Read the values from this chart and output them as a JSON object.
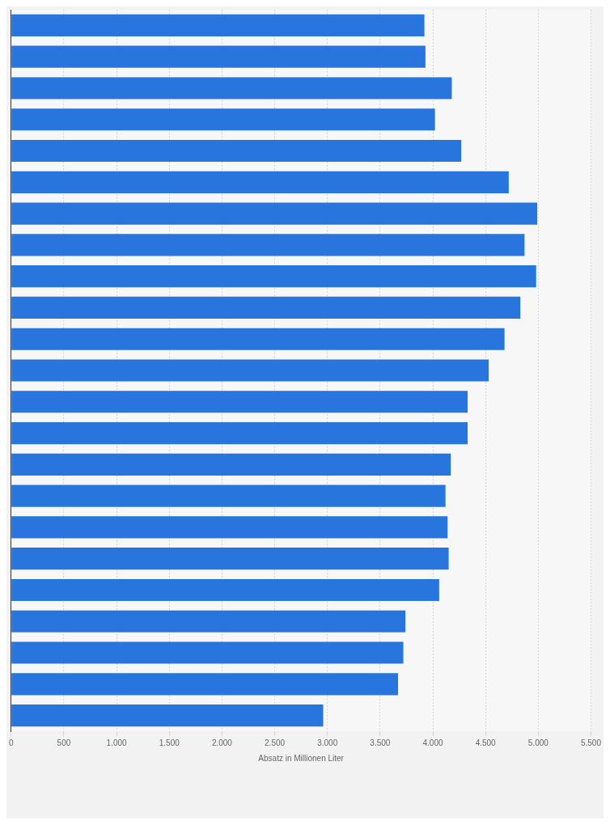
{
  "chart_data": {
    "type": "bar",
    "orientation": "horizontal",
    "xlabel": "Absatz in Millionen Liter",
    "categories": [
      null,
      null,
      null,
      null,
      null,
      null,
      null,
      null,
      null,
      null,
      null,
      null,
      null,
      null,
      null,
      null,
      null,
      null,
      null,
      null,
      null,
      null,
      null
    ],
    "values": [
      3920,
      3930,
      4180,
      4020,
      4270,
      4720,
      4990,
      4870,
      4980,
      4830,
      4680,
      4530,
      4330,
      4330,
      4170,
      4120,
      4140,
      4150,
      4060,
      3740,
      3720,
      3670,
      2960
    ],
    "color": "#2876dd",
    "xlim": [
      0,
      5500
    ],
    "xticks": [
      0,
      500,
      {
        "value": 1000,
        "label": "1.000"
      },
      {
        "value": 1500,
        "label": "1.500"
      },
      {
        "value": 2000,
        "label": "2.000"
      },
      {
        "value": 2500,
        "label": "2.500"
      },
      {
        "value": 3000,
        "label": "3.000"
      },
      {
        "value": 3500,
        "label": "3.500"
      },
      {
        "value": 4000,
        "label": "4.000"
      },
      {
        "value": 4500,
        "label": "4.500"
      },
      {
        "value": 5000,
        "label": "5.000"
      },
      {
        "value": 5500,
        "label": "5.500"
      }
    ],
    "grid": "x",
    "legend": false
  }
}
